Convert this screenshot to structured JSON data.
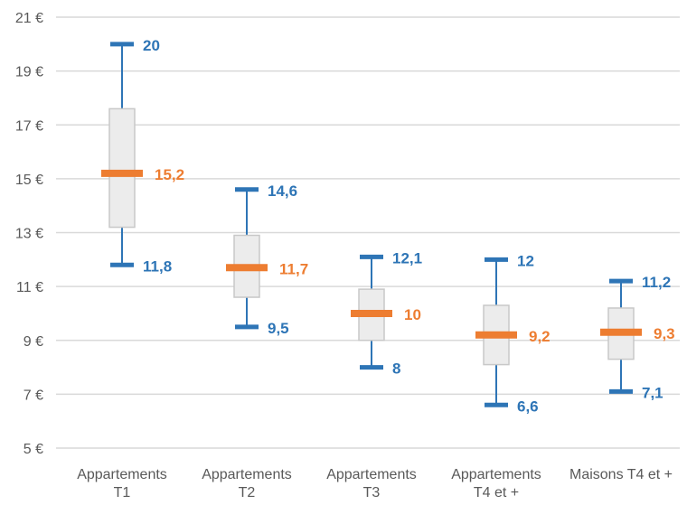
{
  "chart_data": {
    "type": "boxplot",
    "categories": [
      [
        "Appartements",
        "T1"
      ],
      [
        "Appartements",
        "T2"
      ],
      [
        "Appartements",
        "T3"
      ],
      [
        "Appartements",
        "T4 et +"
      ],
      [
        "Maisons T4 et +"
      ]
    ],
    "y_ticks": [
      {
        "value": 21,
        "label": "21 €"
      },
      {
        "value": 19,
        "label": "19 €"
      },
      {
        "value": 17,
        "label": "17 €"
      },
      {
        "value": 15,
        "label": "15 €"
      },
      {
        "value": 13,
        "label": "13 €"
      },
      {
        "value": 11,
        "label": "11 €"
      },
      {
        "value": 9,
        "label": "9 €"
      },
      {
        "value": 7,
        "label": "7 €"
      },
      {
        "value": 5,
        "label": "5 €"
      }
    ],
    "ylim": [
      5,
      21
    ],
    "grid": true,
    "boxes": [
      {
        "min": 11.8,
        "q1": 13.2,
        "median": 15.2,
        "q3": 17.6,
        "max": 20.0,
        "min_label": "11,8",
        "median_label": "15,2",
        "max_label": "20"
      },
      {
        "min": 9.5,
        "q1": 10.6,
        "median": 11.7,
        "q3": 12.9,
        "max": 14.6,
        "min_label": "9,5",
        "median_label": "11,7",
        "max_label": "14,6"
      },
      {
        "min": 8.0,
        "q1": 9.0,
        "median": 10.0,
        "q3": 10.9,
        "max": 12.1,
        "min_label": "8",
        "median_label": "10",
        "max_label": "12,1"
      },
      {
        "min": 6.6,
        "q1": 8.1,
        "median": 9.2,
        "q3": 10.3,
        "max": 12.0,
        "min_label": "6,6",
        "median_label": "9,2",
        "max_label": "12"
      },
      {
        "min": 7.1,
        "q1": 8.3,
        "median": 9.3,
        "q3": 10.2,
        "max": 11.2,
        "min_label": "7,1",
        "median_label": "9,3",
        "max_label": "11,2"
      }
    ],
    "colors": {
      "whisker": "#2e75b6",
      "median": "#ed7d31",
      "box_fill": "#ececec",
      "box_stroke": "#c8c8c8",
      "grid": "#d9d9d9",
      "axis_text": "#595959",
      "whisker_label": "#2e75b6",
      "median_label": "#ed7d31"
    }
  }
}
